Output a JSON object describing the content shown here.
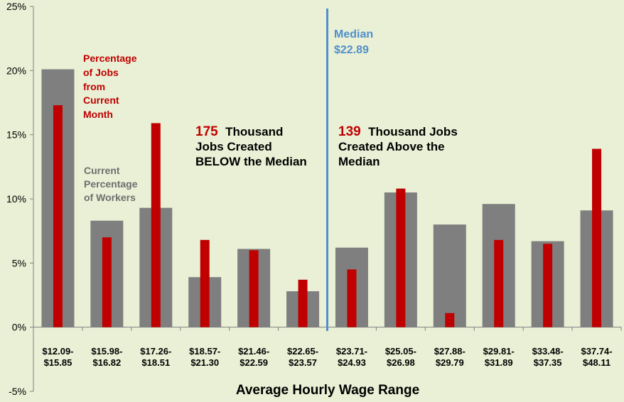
{
  "chart_data": {
    "type": "bar",
    "categories": [
      [
        "$12.09-",
        "$15.85"
      ],
      [
        "$15.98-",
        "$16.82"
      ],
      [
        "$17.26-",
        "$18.51"
      ],
      [
        "$18.57-",
        "$21.30"
      ],
      [
        "$21.46-",
        "$22.59"
      ],
      [
        "$22.65-",
        "$23.57"
      ],
      [
        "$23.71-",
        "$24.93"
      ],
      [
        "$25.05-",
        "$26.98"
      ],
      [
        "$27.88-",
        "$29.79"
      ],
      [
        "$29.81-",
        "$31.89"
      ],
      [
        "$33.48-",
        "$37.35"
      ],
      [
        "$37.74-",
        "$48.11"
      ]
    ],
    "series": [
      {
        "name": "Current Percentage of Workers",
        "color": "#7f7f7f",
        "values": [
          20.1,
          8.3,
          9.3,
          3.9,
          6.1,
          2.8,
          6.2,
          10.5,
          8.0,
          9.6,
          6.7,
          9.1
        ]
      },
      {
        "name": "Percentage of Jobs from Current Month",
        "color": "#c00000",
        "values": [
          17.3,
          7.0,
          15.9,
          6.8,
          6.0,
          3.7,
          4.5,
          10.8,
          1.1,
          6.8,
          6.5,
          13.9
        ]
      }
    ],
    "ylim": [
      -5,
      25
    ],
    "yticks": [
      -5,
      0,
      5,
      10,
      15,
      20,
      25
    ],
    "ytick_labels": [
      "-5%",
      "0%",
      "5%",
      "10%",
      "15%",
      "20%",
      "25%"
    ],
    "xlabel": "Average Hourly Wage Range",
    "ylabel": "",
    "grid": false,
    "median_line": {
      "after_category_index": 5,
      "color": "#4f8fcc"
    },
    "annotations": {
      "red_series_label": [
        "Percentage",
        "of Jobs",
        "from",
        "Current",
        "Month"
      ],
      "gray_series_label": [
        "Current",
        "Percentage",
        "of Workers"
      ],
      "median_label": [
        "Median",
        "$22.89"
      ],
      "below_number": "175",
      "below_text": [
        "Thousand",
        "Jobs Created",
        "BELOW the Median"
      ],
      "above_number": "139",
      "above_text": [
        "Thousand Jobs",
        "Created Above the",
        "Median"
      ]
    }
  }
}
